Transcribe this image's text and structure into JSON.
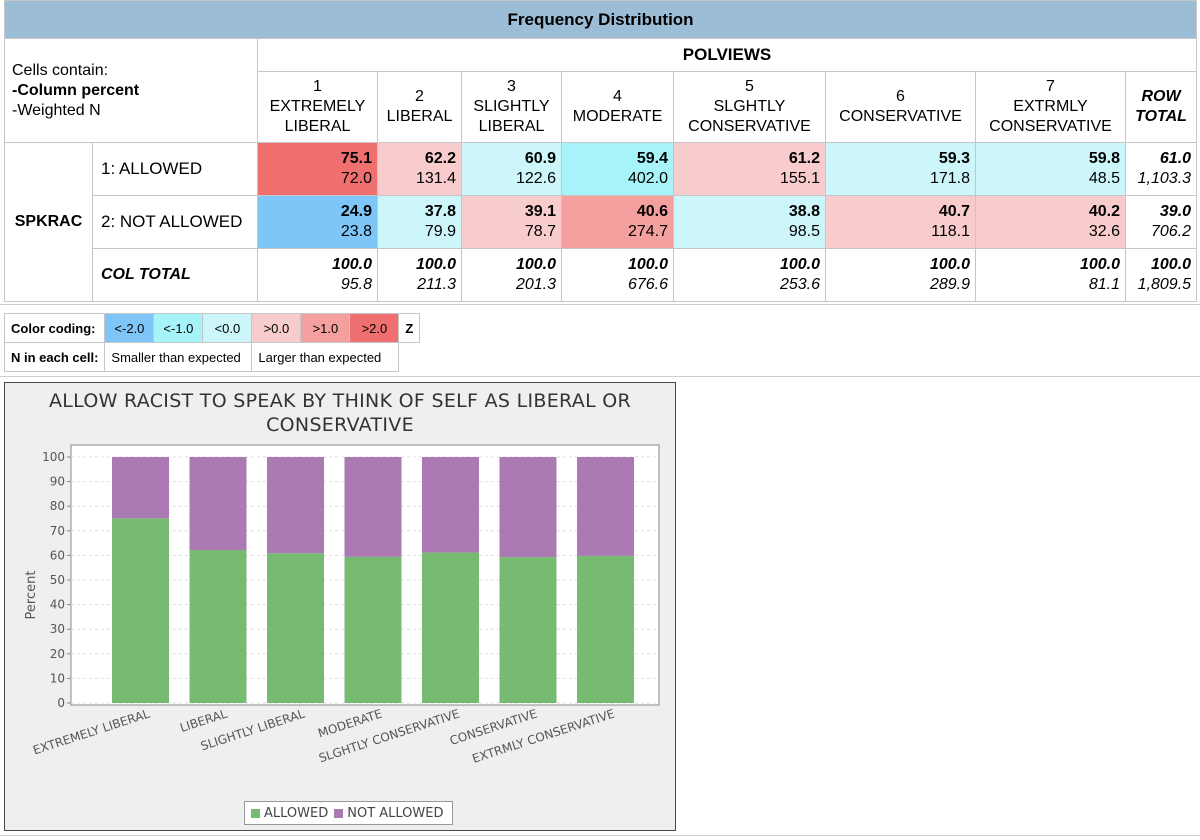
{
  "table": {
    "title": "Frequency Distribution",
    "cells_contain": {
      "line1": "Cells contain:",
      "line2": "-Column percent",
      "line3": "-Weighted N"
    },
    "col_var": "POLVIEWS",
    "row_var": "SPKRAC",
    "columns": [
      {
        "num": "1",
        "l1": "EXTREMELY",
        "l2": "LIBERAL"
      },
      {
        "num": "2",
        "l1": "LIBERAL",
        "l2": ""
      },
      {
        "num": "3",
        "l1": "SLIGHTLY",
        "l2": "LIBERAL"
      },
      {
        "num": "4",
        "l1": "MODERATE",
        "l2": ""
      },
      {
        "num": "5",
        "l1": "SLGHTLY",
        "l2": "CONSERVATIVE"
      },
      {
        "num": "6",
        "l1": "CONSERVATIVE",
        "l2": ""
      },
      {
        "num": "7",
        "l1": "EXTRMLY",
        "l2": "CONSERVATIVE"
      }
    ],
    "row_total_label": {
      "l1": "ROW",
      "l2": "TOTAL"
    },
    "rows": [
      {
        "label": "1: ALLOWED",
        "cells": [
          {
            "pct": "75.1",
            "n": "72.0",
            "color": "#f07070"
          },
          {
            "pct": "62.2",
            "n": "131.4",
            "color": "#f8cccc"
          },
          {
            "pct": "60.9",
            "n": "122.6",
            "color": "#ccf6fa"
          },
          {
            "pct": "59.4",
            "n": "402.0",
            "color": "#a6f4fa"
          },
          {
            "pct": "61.2",
            "n": "155.1",
            "color": "#f8cccc"
          },
          {
            "pct": "59.3",
            "n": "171.8",
            "color": "#ccf6fa"
          },
          {
            "pct": "59.8",
            "n": "48.5",
            "color": "#ccf6fa"
          }
        ],
        "total": {
          "pct": "61.0",
          "n": "1,103.3"
        }
      },
      {
        "label": "2: NOT ALLOWED",
        "cells": [
          {
            "pct": "24.9",
            "n": "23.8",
            "color": "#7ec6f8"
          },
          {
            "pct": "37.8",
            "n": "79.9",
            "color": "#ccf6fa"
          },
          {
            "pct": "39.1",
            "n": "78.7",
            "color": "#f8cccc"
          },
          {
            "pct": "40.6",
            "n": "274.7",
            "color": "#f3a09e"
          },
          {
            "pct": "38.8",
            "n": "98.5",
            "color": "#ccf6fa"
          },
          {
            "pct": "40.7",
            "n": "118.1",
            "color": "#f8cccc"
          },
          {
            "pct": "40.2",
            "n": "32.6",
            "color": "#f8cccc"
          }
        ],
        "total": {
          "pct": "39.0",
          "n": "706.2"
        }
      }
    ],
    "col_total": {
      "label": "COL TOTAL",
      "cells": [
        {
          "pct": "100.0",
          "n": "95.8"
        },
        {
          "pct": "100.0",
          "n": "211.3"
        },
        {
          "pct": "100.0",
          "n": "201.3"
        },
        {
          "pct": "100.0",
          "n": "676.6"
        },
        {
          "pct": "100.0",
          "n": "253.6"
        },
        {
          "pct": "100.0",
          "n": "289.9"
        },
        {
          "pct": "100.0",
          "n": "81.1"
        }
      ],
      "total": {
        "pct": "100.0",
        "n": "1,809.5"
      }
    }
  },
  "legend": {
    "color_coding_label": "Color coding:",
    "swatches": [
      {
        "text": "<-2.0",
        "color": "#7ec6f8"
      },
      {
        "text": "<-1.0",
        "color": "#a6f4fa"
      },
      {
        "text": "<0.0",
        "color": "#ccf6fa"
      },
      {
        "text": ">0.0",
        "color": "#f8cccc"
      },
      {
        "text": ">1.0",
        "color": "#f3a09e"
      },
      {
        "text": ">2.0",
        "color": "#f07070"
      }
    ],
    "z_label": "Z",
    "n_label": "N in each cell:",
    "smaller": "Smaller than expected",
    "larger": "Larger than expected"
  },
  "chart_data": {
    "type": "bar",
    "stacked": true,
    "title_lines": [
      "ALLOW RACIST TO SPEAK BY THINK OF SELF AS LIBERAL OR",
      "CONSERVATIVE"
    ],
    "title": "ALLOW RACIST TO SPEAK BY THINK OF SELF AS LIBERAL OR CONSERVATIVE",
    "ylabel": "Percent",
    "xlabel": "",
    "ylim": [
      0,
      100
    ],
    "yticks": [
      0,
      10,
      20,
      30,
      40,
      50,
      60,
      70,
      80,
      90,
      100
    ],
    "categories": [
      "EXTREMELY LIBERAL",
      "LIBERAL",
      "SLIGHTLY LIBERAL",
      "MODERATE",
      "SLGHTLY CONSERVATIVE",
      "CONSERVATIVE",
      "EXTRMLY CONSERVATIVE"
    ],
    "series": [
      {
        "name": "ALLOWED",
        "color": "#77bb72",
        "values": [
          75.1,
          62.2,
          60.9,
          59.4,
          61.2,
          59.3,
          59.8
        ]
      },
      {
        "name": "NOT ALLOWED",
        "color": "#ab7ab3",
        "values": [
          24.9,
          37.8,
          39.1,
          40.6,
          38.8,
          40.7,
          40.2
        ]
      }
    ],
    "grid": true,
    "legend_position": "bottom"
  }
}
